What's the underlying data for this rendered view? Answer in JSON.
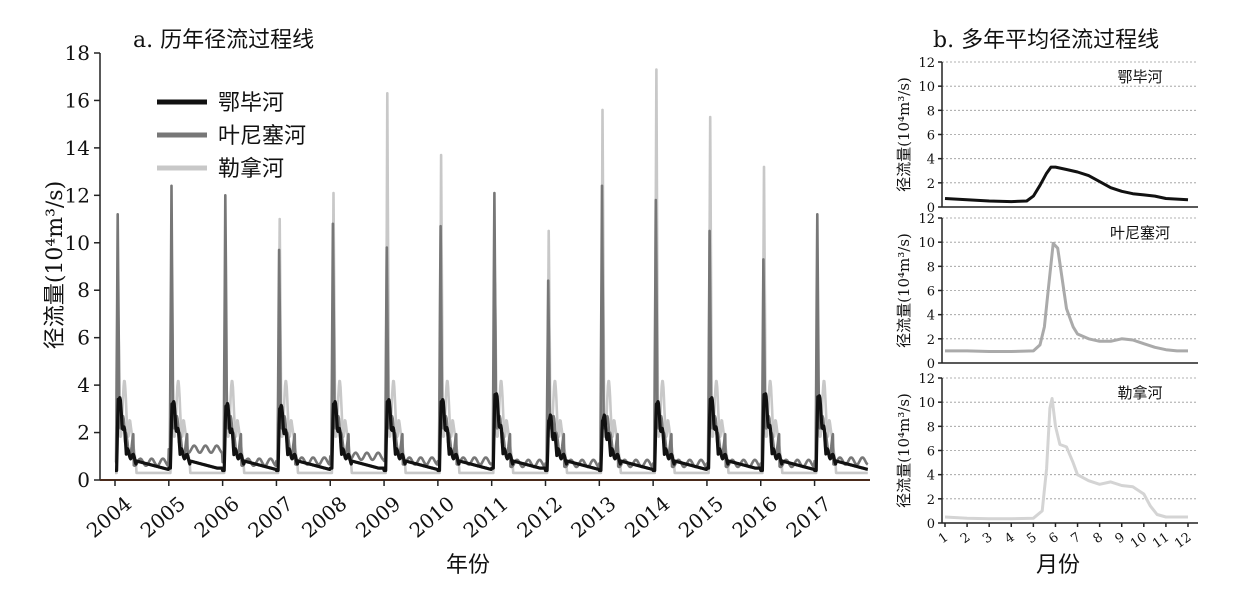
{
  "chart_data": [
    {
      "type": "line",
      "title": "a. 历年径流过程线",
      "xlabel": "年份",
      "ylabel": "径流量(10⁴m³/s)",
      "ylim": [
        0,
        18
      ],
      "yticks": [
        0,
        2,
        4,
        6,
        8,
        10,
        12,
        14,
        16,
        18
      ],
      "x_tick_labels": [
        "2004",
        "2005",
        "2006",
        "2007",
        "2008",
        "2009",
        "2010",
        "2011",
        "2012",
        "2013",
        "2014",
        "2015",
        "2016",
        "2017"
      ],
      "legend_position": "top-left",
      "series": [
        {
          "name": "鄂毕河",
          "color": "#111111",
          "base": [
            0.4,
            0.5,
            0.4,
            0.4,
            0.5,
            0.4,
            0.4,
            0.5,
            0.4,
            0.4,
            0.4,
            0.5,
            0.4,
            0.4
          ],
          "peaks": [
            3.7,
            3.5,
            3.4,
            3.3,
            3.5,
            3.6,
            3.6,
            3.9,
            2.8,
            2.8,
            3.5,
            3.7,
            3.9,
            3.8
          ]
        },
        {
          "name": "叶尼塞河",
          "color": "#777777",
          "base": [
            0.75,
            1.3,
            0.75,
            0.8,
            1.0,
            0.8,
            0.8,
            0.7,
            0.7,
            0.7,
            0.7,
            0.7,
            0.7,
            0.8
          ],
          "peaks": [
            11.2,
            12.4,
            12.0,
            9.7,
            10.8,
            9.8,
            10.7,
            12.1,
            8.4,
            12.4,
            11.8,
            10.5,
            9.3,
            11.2
          ]
        },
        {
          "name": "勒拿河",
          "color": "#c8c8c8",
          "base": [
            0.3,
            0.3,
            0.3,
            0.3,
            0.3,
            0.3,
            0.3,
            0.3,
            0.3,
            0.3,
            0.3,
            0.3,
            0.3,
            0.3
          ],
          "peaks": [
            7.0,
            4.8,
            4.6,
            11.0,
            12.1,
            16.3,
            13.7,
            8.3,
            10.5,
            15.6,
            17.3,
            15.3,
            13.2,
            4.7
          ]
        }
      ]
    },
    {
      "type": "line",
      "title": "b. 多年平均径流过程线",
      "xlabel": "月份",
      "x_tick_labels": [
        "1",
        "2",
        "3",
        "4",
        "5",
        "6",
        "7",
        "8",
        "9",
        "10",
        "11",
        "12"
      ],
      "ylim": [
        0,
        12
      ],
      "yticks": [
        0,
        2,
        4,
        6,
        8,
        10,
        12
      ],
      "ylabel": "径流量(10⁴m³/s)",
      "panels": [
        {
          "name": "鄂毕河",
          "color": "#111111",
          "x": [
            1,
            2,
            3,
            4,
            4.7,
            5,
            5.3,
            5.6,
            5.8,
            6,
            6.5,
            7,
            7.5,
            8,
            8.5,
            9,
            9.5,
            10,
            10.5,
            11,
            11.5,
            12
          ],
          "y": [
            0.7,
            0.6,
            0.5,
            0.45,
            0.5,
            0.9,
            1.8,
            2.8,
            3.3,
            3.3,
            3.1,
            2.9,
            2.6,
            2.1,
            1.6,
            1.3,
            1.1,
            1.0,
            0.9,
            0.7,
            0.65,
            0.6
          ]
        },
        {
          "name": "叶尼塞河",
          "color": "#aaaaaa",
          "x": [
            1,
            2,
            3,
            4,
            5,
            5.3,
            5.5,
            5.7,
            5.9,
            6.1,
            6.3,
            6.5,
            6.8,
            7,
            7.5,
            8,
            8.5,
            9,
            9.5,
            10,
            10.5,
            11,
            11.5,
            12
          ],
          "y": [
            1.0,
            1.0,
            0.95,
            0.95,
            1.0,
            1.5,
            3.0,
            6.5,
            9.9,
            9.5,
            7.0,
            4.5,
            3.0,
            2.4,
            2.0,
            1.8,
            1.8,
            2.0,
            1.9,
            1.6,
            1.3,
            1.1,
            1.0,
            1.0
          ]
        },
        {
          "name": "勒拿河",
          "color": "#d4d4d4",
          "x": [
            1,
            2,
            3,
            4,
            5,
            5.4,
            5.6,
            5.75,
            5.85,
            6,
            6.2,
            6.5,
            6.8,
            7,
            7.5,
            8,
            8.5,
            9,
            9.5,
            10,
            10.3,
            10.6,
            11,
            11.5,
            12
          ],
          "y": [
            0.5,
            0.4,
            0.35,
            0.35,
            0.4,
            1.0,
            4.5,
            9.5,
            10.3,
            8.0,
            6.5,
            6.3,
            5.0,
            4.0,
            3.5,
            3.2,
            3.4,
            3.1,
            3.0,
            2.4,
            1.4,
            0.7,
            0.5,
            0.5,
            0.5
          ]
        }
      ]
    }
  ]
}
